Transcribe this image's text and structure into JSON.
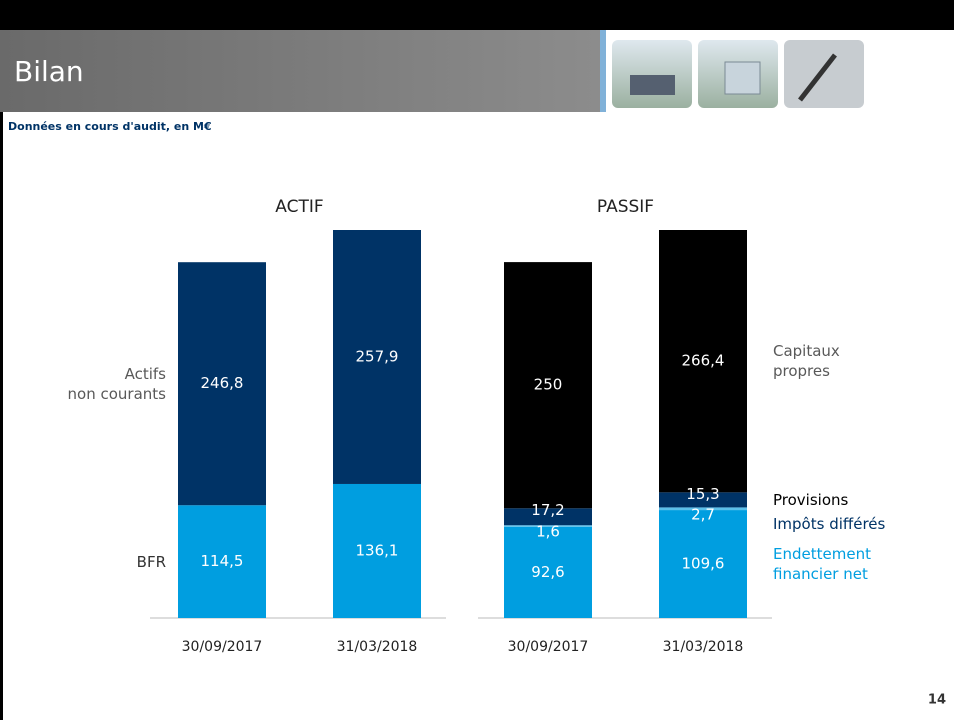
{
  "slide": {
    "title": "Bilan",
    "subtitle": "Données en cours d'audit, en M€",
    "page_number": "14"
  },
  "chart_data": [
    {
      "type": "bar",
      "stacked": true,
      "title": "ACTIF",
      "categories": [
        "30/09/2017",
        "31/03/2018"
      ],
      "legend": "left",
      "series": [
        {
          "name": "BFR",
          "color": "#009ee0",
          "label_color": "#333333",
          "values": [
            114.5,
            136.1
          ],
          "value_labels": [
            "114,5",
            "136,1"
          ]
        },
        {
          "name": "Actifs\nnon courants",
          "color": "#003366",
          "label_color": "#595959",
          "values": [
            246.8,
            257.9
          ],
          "value_labels": [
            "246,8",
            "257,9"
          ]
        }
      ]
    },
    {
      "type": "bar",
      "stacked": true,
      "title": "PASSIF",
      "categories": [
        "30/09/2017",
        "31/03/2018"
      ],
      "legend": "right",
      "series": [
        {
          "name": "Endettement\nfinancier net",
          "color": "#009ee0",
          "label_color": "#009ee0",
          "values": [
            92.6,
            109.6
          ],
          "value_labels": [
            "92,6",
            "109,6"
          ]
        },
        {
          "name": "Impôts différés",
          "color": "#5bc0ea",
          "label_color": "#003366",
          "values": [
            1.6,
            2.7
          ],
          "value_labels": [
            "1,6",
            "2,7"
          ]
        },
        {
          "name": "Provisions",
          "color": "#003366",
          "label_color": "#000000",
          "values": [
            17.2,
            15.3
          ],
          "value_labels": [
            "17,2",
            "15,3"
          ]
        },
        {
          "name": "Capitaux\npropres",
          "color": "#000000",
          "label_color": "#595959",
          "values": [
            250,
            266.4
          ],
          "value_labels": [
            "250",
            "266,4"
          ]
        }
      ]
    }
  ]
}
